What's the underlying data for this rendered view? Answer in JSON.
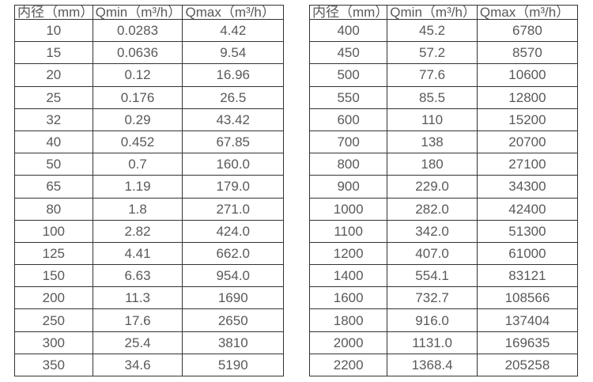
{
  "colors": {
    "background": "#ffffff",
    "border": "#333333",
    "text": "#595959"
  },
  "chart_data": [
    {
      "type": "table",
      "title": "",
      "headers": [
        "内径（mm）",
        "Qmin（m³/h）",
        "Qmax（m³/h）"
      ],
      "rows": [
        [
          "10",
          "0.0283",
          "4.42"
        ],
        [
          "15",
          "0.0636",
          "9.54"
        ],
        [
          "20",
          "0.12",
          "16.96"
        ],
        [
          "25",
          "0.176",
          "26.5"
        ],
        [
          "32",
          "0.29",
          "43.42"
        ],
        [
          "40",
          "0.452",
          "67.85"
        ],
        [
          "50",
          "0.7",
          "160.0"
        ],
        [
          "65",
          "1.19",
          "179.0"
        ],
        [
          "80",
          "1.8",
          "271.0"
        ],
        [
          "100",
          "2.82",
          "424.0"
        ],
        [
          "125",
          "4.41",
          "662.0"
        ],
        [
          "150",
          "6.63",
          "954.0"
        ],
        [
          "200",
          "11.3",
          "1690"
        ],
        [
          "250",
          "17.6",
          "2650"
        ],
        [
          "300",
          "25.4",
          "3810"
        ],
        [
          "350",
          "34.6",
          "5190"
        ]
      ]
    },
    {
      "type": "table",
      "title": "",
      "headers": [
        "内径（mm）",
        "Qmin（m³/h）",
        "Qmax（m³/h）"
      ],
      "rows": [
        [
          "400",
          "45.2",
          "6780"
        ],
        [
          "450",
          "57.2",
          "8570"
        ],
        [
          "500",
          "77.6",
          "10600"
        ],
        [
          "550",
          "85.5",
          "12800"
        ],
        [
          "600",
          "110",
          "15200"
        ],
        [
          "700",
          "138",
          "20700"
        ],
        [
          "800",
          "180",
          "27100"
        ],
        [
          "900",
          "229.0",
          "34300"
        ],
        [
          "1000",
          "282.0",
          "42400"
        ],
        [
          "1100",
          "342.0",
          "51300"
        ],
        [
          "1200",
          "407.0",
          "61000"
        ],
        [
          "1400",
          "554.1",
          "83121"
        ],
        [
          "1600",
          "732.7",
          "108566"
        ],
        [
          "1800",
          "916.0",
          "137404"
        ],
        [
          "2000",
          "1131.0",
          "169635"
        ],
        [
          "2200",
          "1368.4",
          "205258"
        ]
      ]
    }
  ]
}
